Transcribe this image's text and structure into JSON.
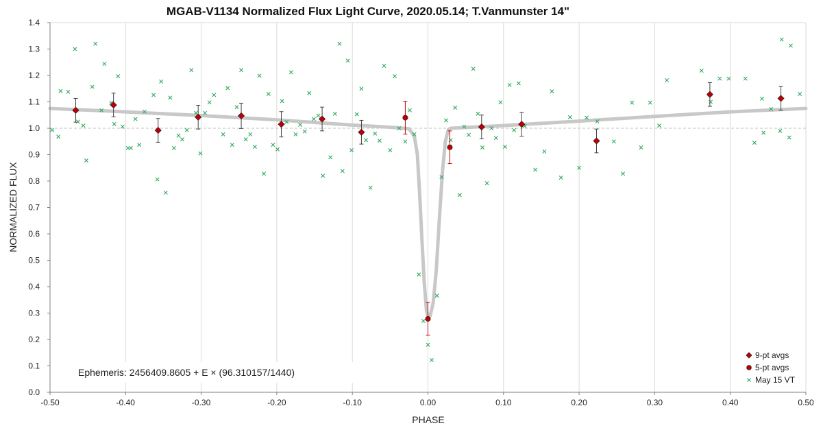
{
  "chart_data": {
    "type": "scatter",
    "title": "MGAB-V1134 Normalized Flux Light Curve, 2020.05.14; T.Vanmunster 14\"",
    "xlabel": "PHASE",
    "ylabel": "NORMALIZED FLUX",
    "xlim": [
      -0.5,
      0.5
    ],
    "ylim": [
      0.0,
      1.4
    ],
    "x_ticks": [
      -0.5,
      -0.4,
      -0.3,
      -0.2,
      -0.1,
      0.0,
      0.1,
      0.2,
      0.3,
      0.4,
      0.5
    ],
    "x_tick_labels": [
      "-0.50",
      "-0.40",
      "-0.30",
      "-0.20",
      "-0.10",
      "0.00",
      "0.10",
      "0.20",
      "0.30",
      "0.40",
      "0.50"
    ],
    "y_ticks": [
      0.0,
      0.1,
      0.2,
      0.3,
      0.4,
      0.5,
      0.6,
      0.7,
      0.8,
      0.9,
      1.0,
      1.1,
      1.2,
      1.3,
      1.4
    ],
    "y_tick_labels": [
      "0.0",
      "0.1",
      "0.2",
      "0.3",
      "0.4",
      "0.5",
      "0.6",
      "0.7",
      "0.8",
      "0.9",
      "1.0",
      "1.1",
      "1.2",
      "1.3",
      "1.4"
    ],
    "grid": "vertical",
    "reference_line": 1.0,
    "legend_position": "bottom-right",
    "annotation": "Ephemeris: 2456409.8605 + E × (96.310157/1440)",
    "colors": {
      "avg9": "#c00000",
      "avg5": "#c00000",
      "raw": "#2eaa5c",
      "model": "#c8c8c8",
      "grid": "#d9d9d9",
      "errbar_dark": "#404040",
      "errbar_red": "#c00000"
    },
    "series": [
      {
        "name": "9-pt avgs",
        "marker": "diamond",
        "points": [
          {
            "x": -0.466,
            "y": 1.068,
            "err": 0.045
          },
          {
            "x": -0.416,
            "y": 1.088,
            "err": 0.045
          },
          {
            "x": -0.357,
            "y": 0.992,
            "err": 0.045
          },
          {
            "x": -0.304,
            "y": 1.042,
            "err": 0.045
          },
          {
            "x": -0.247,
            "y": 1.047,
            "err": 0.048
          },
          {
            "x": -0.194,
            "y": 1.015,
            "err": 0.048
          },
          {
            "x": -0.14,
            "y": 1.035,
            "err": 0.045
          },
          {
            "x": -0.088,
            "y": 0.985,
            "err": 0.045
          },
          {
            "x": 0.071,
            "y": 1.005,
            "err": 0.045
          },
          {
            "x": 0.124,
            "y": 1.015,
            "err": 0.045
          },
          {
            "x": 0.223,
            "y": 0.952,
            "err": 0.045
          },
          {
            "x": 0.373,
            "y": 1.128,
            "err": 0.045
          },
          {
            "x": 0.467,
            "y": 1.113,
            "err": 0.045
          }
        ]
      },
      {
        "name": "5-pt avgs",
        "marker": "circle",
        "points": [
          {
            "x": -0.03,
            "y": 1.04,
            "err": 0.062
          },
          {
            "x": 0.0,
            "y": 0.278,
            "err": 0.062
          },
          {
            "x": 0.029,
            "y": 0.928,
            "err": 0.062
          }
        ]
      },
      {
        "name": "May 15 VT",
        "marker": "x",
        "points": [
          {
            "x": -0.497,
            "y": 0.993
          },
          {
            "x": -0.489,
            "y": 0.968
          },
          {
            "x": -0.486,
            "y": 1.141
          },
          {
            "x": -0.476,
            "y": 1.138
          },
          {
            "x": -0.467,
            "y": 1.3
          },
          {
            "x": -0.463,
            "y": 1.025
          },
          {
            "x": -0.456,
            "y": 1.01
          },
          {
            "x": -0.452,
            "y": 0.878
          },
          {
            "x": -0.444,
            "y": 1.157
          },
          {
            "x": -0.44,
            "y": 1.32
          },
          {
            "x": -0.432,
            "y": 1.068
          },
          {
            "x": -0.428,
            "y": 1.244
          },
          {
            "x": -0.419,
            "y": 1.096
          },
          {
            "x": -0.415,
            "y": 1.016
          },
          {
            "x": -0.41,
            "y": 1.197
          },
          {
            "x": -0.404,
            "y": 1.006
          },
          {
            "x": -0.397,
            "y": 0.925
          },
          {
            "x": -0.393,
            "y": 0.925
          },
          {
            "x": -0.387,
            "y": 1.035
          },
          {
            "x": -0.382,
            "y": 0.937
          },
          {
            "x": -0.375,
            "y": 1.063
          },
          {
            "x": -0.363,
            "y": 1.126
          },
          {
            "x": -0.358,
            "y": 0.806
          },
          {
            "x": -0.353,
            "y": 1.177
          },
          {
            "x": -0.347,
            "y": 0.756
          },
          {
            "x": -0.341,
            "y": 1.116
          },
          {
            "x": -0.336,
            "y": 0.925
          },
          {
            "x": -0.33,
            "y": 0.972
          },
          {
            "x": -0.325,
            "y": 0.958
          },
          {
            "x": -0.319,
            "y": 0.993
          },
          {
            "x": -0.313,
            "y": 1.22
          },
          {
            "x": -0.307,
            "y": 1.058
          },
          {
            "x": -0.301,
            "y": 0.905
          },
          {
            "x": -0.295,
            "y": 1.058
          },
          {
            "x": -0.289,
            "y": 1.098
          },
          {
            "x": -0.283,
            "y": 1.126
          },
          {
            "x": -0.271,
            "y": 0.977
          },
          {
            "x": -0.265,
            "y": 1.152
          },
          {
            "x": -0.259,
            "y": 0.937
          },
          {
            "x": -0.253,
            "y": 1.08
          },
          {
            "x": -0.247,
            "y": 1.22
          },
          {
            "x": -0.241,
            "y": 0.958
          },
          {
            "x": -0.235,
            "y": 0.977
          },
          {
            "x": -0.229,
            "y": 0.93
          },
          {
            "x": -0.223,
            "y": 1.199
          },
          {
            "x": -0.217,
            "y": 0.828
          },
          {
            "x": -0.211,
            "y": 1.13
          },
          {
            "x": -0.205,
            "y": 0.937
          },
          {
            "x": -0.199,
            "y": 0.92
          },
          {
            "x": -0.193,
            "y": 1.103
          },
          {
            "x": -0.187,
            "y": 1.024
          },
          {
            "x": -0.181,
            "y": 1.212
          },
          {
            "x": -0.175,
            "y": 0.977
          },
          {
            "x": -0.169,
            "y": 1.013
          },
          {
            "x": -0.163,
            "y": 0.988
          },
          {
            "x": -0.157,
            "y": 1.133
          },
          {
            "x": -0.151,
            "y": 1.035
          },
          {
            "x": -0.145,
            "y": 1.048
          },
          {
            "x": -0.139,
            "y": 0.82
          },
          {
            "x": -0.129,
            "y": 0.89
          },
          {
            "x": -0.123,
            "y": 1.055
          },
          {
            "x": -0.117,
            "y": 1.32
          },
          {
            "x": -0.113,
            "y": 0.838
          },
          {
            "x": -0.106,
            "y": 1.256
          },
          {
            "x": -0.101,
            "y": 0.917
          },
          {
            "x": -0.094,
            "y": 1.053
          },
          {
            "x": -0.088,
            "y": 1.15
          },
          {
            "x": -0.082,
            "y": 0.955
          },
          {
            "x": -0.076,
            "y": 0.775
          },
          {
            "x": -0.07,
            "y": 0.98
          },
          {
            "x": -0.064,
            "y": 0.953
          },
          {
            "x": -0.058,
            "y": 1.236
          },
          {
            "x": -0.05,
            "y": 0.917
          },
          {
            "x": -0.044,
            "y": 1.197
          },
          {
            "x": -0.038,
            "y": 1.0
          },
          {
            "x": -0.03,
            "y": 0.95
          },
          {
            "x": -0.024,
            "y": 1.068
          },
          {
            "x": -0.018,
            "y": 0.977
          },
          {
            "x": -0.012,
            "y": 0.446
          },
          {
            "x": -0.006,
            "y": 0.27
          },
          {
            "x": 0.0,
            "y": 0.18
          },
          {
            "x": 0.005,
            "y": 0.122
          },
          {
            "x": 0.012,
            "y": 0.366
          },
          {
            "x": 0.018,
            "y": 0.815
          },
          {
            "x": 0.024,
            "y": 1.03
          },
          {
            "x": 0.03,
            "y": 0.955
          },
          {
            "x": 0.036,
            "y": 1.078
          },
          {
            "x": 0.042,
            "y": 0.747
          },
          {
            "x": 0.048,
            "y": 1.006
          },
          {
            "x": 0.054,
            "y": 0.975
          },
          {
            "x": 0.06,
            "y": 1.225
          },
          {
            "x": 0.066,
            "y": 1.055
          },
          {
            "x": 0.072,
            "y": 0.927
          },
          {
            "x": 0.078,
            "y": 0.792
          },
          {
            "x": 0.084,
            "y": 1.0
          },
          {
            "x": 0.09,
            "y": 0.963
          },
          {
            "x": 0.096,
            "y": 1.098
          },
          {
            "x": 0.102,
            "y": 0.93
          },
          {
            "x": 0.108,
            "y": 1.164
          },
          {
            "x": 0.114,
            "y": 0.993
          },
          {
            "x": 0.12,
            "y": 1.17
          },
          {
            "x": 0.128,
            "y": 1.008
          },
          {
            "x": 0.142,
            "y": 0.843
          },
          {
            "x": 0.154,
            "y": 0.912
          },
          {
            "x": 0.164,
            "y": 1.14
          },
          {
            "x": 0.176,
            "y": 0.813
          },
          {
            "x": 0.188,
            "y": 1.042
          },
          {
            "x": 0.2,
            "y": 0.85
          },
          {
            "x": 0.21,
            "y": 1.04
          },
          {
            "x": 0.224,
            "y": 1.026
          },
          {
            "x": 0.246,
            "y": 0.95
          },
          {
            "x": 0.258,
            "y": 0.828
          },
          {
            "x": 0.27,
            "y": 1.097
          },
          {
            "x": 0.282,
            "y": 0.927
          },
          {
            "x": 0.294,
            "y": 1.097
          },
          {
            "x": 0.306,
            "y": 1.01
          },
          {
            "x": 0.316,
            "y": 1.182
          },
          {
            "x": 0.362,
            "y": 1.218
          },
          {
            "x": 0.374,
            "y": 1.1
          },
          {
            "x": 0.386,
            "y": 1.188
          },
          {
            "x": 0.398,
            "y": 1.188
          },
          {
            "x": 0.42,
            "y": 1.188
          },
          {
            "x": 0.432,
            "y": 0.945
          },
          {
            "x": 0.442,
            "y": 1.112
          },
          {
            "x": 0.444,
            "y": 0.983
          },
          {
            "x": 0.454,
            "y": 1.073
          },
          {
            "x": 0.466,
            "y": 0.99
          },
          {
            "x": 0.468,
            "y": 1.336
          },
          {
            "x": 0.478,
            "y": 0.965
          },
          {
            "x": 0.48,
            "y": 1.313
          },
          {
            "x": 0.492,
            "y": 1.13
          }
        ]
      }
    ],
    "model_curve": [
      {
        "x": -0.5,
        "y": 1.075
      },
      {
        "x": -0.4,
        "y": 1.062
      },
      {
        "x": -0.3,
        "y": 1.048
      },
      {
        "x": -0.2,
        "y": 1.032
      },
      {
        "x": -0.1,
        "y": 1.012
      },
      {
        "x": -0.05,
        "y": 1.004
      },
      {
        "x": -0.025,
        "y": 0.998
      },
      {
        "x": -0.018,
        "y": 0.97
      },
      {
        "x": -0.014,
        "y": 0.9
      },
      {
        "x": -0.011,
        "y": 0.75
      },
      {
        "x": -0.008,
        "y": 0.58
      },
      {
        "x": -0.005,
        "y": 0.42
      },
      {
        "x": -0.002,
        "y": 0.31
      },
      {
        "x": 0.0,
        "y": 0.285
      },
      {
        "x": 0.003,
        "y": 0.29
      },
      {
        "x": 0.007,
        "y": 0.34
      },
      {
        "x": 0.011,
        "y": 0.46
      },
      {
        "x": 0.015,
        "y": 0.65
      },
      {
        "x": 0.019,
        "y": 0.83
      },
      {
        "x": 0.023,
        "y": 0.95
      },
      {
        "x": 0.027,
        "y": 0.995
      },
      {
        "x": 0.03,
        "y": 1.0
      },
      {
        "x": 0.1,
        "y": 1.01
      },
      {
        "x": 0.2,
        "y": 1.027
      },
      {
        "x": 0.3,
        "y": 1.045
      },
      {
        "x": 0.4,
        "y": 1.062
      },
      {
        "x": 0.5,
        "y": 1.075
      }
    ]
  }
}
